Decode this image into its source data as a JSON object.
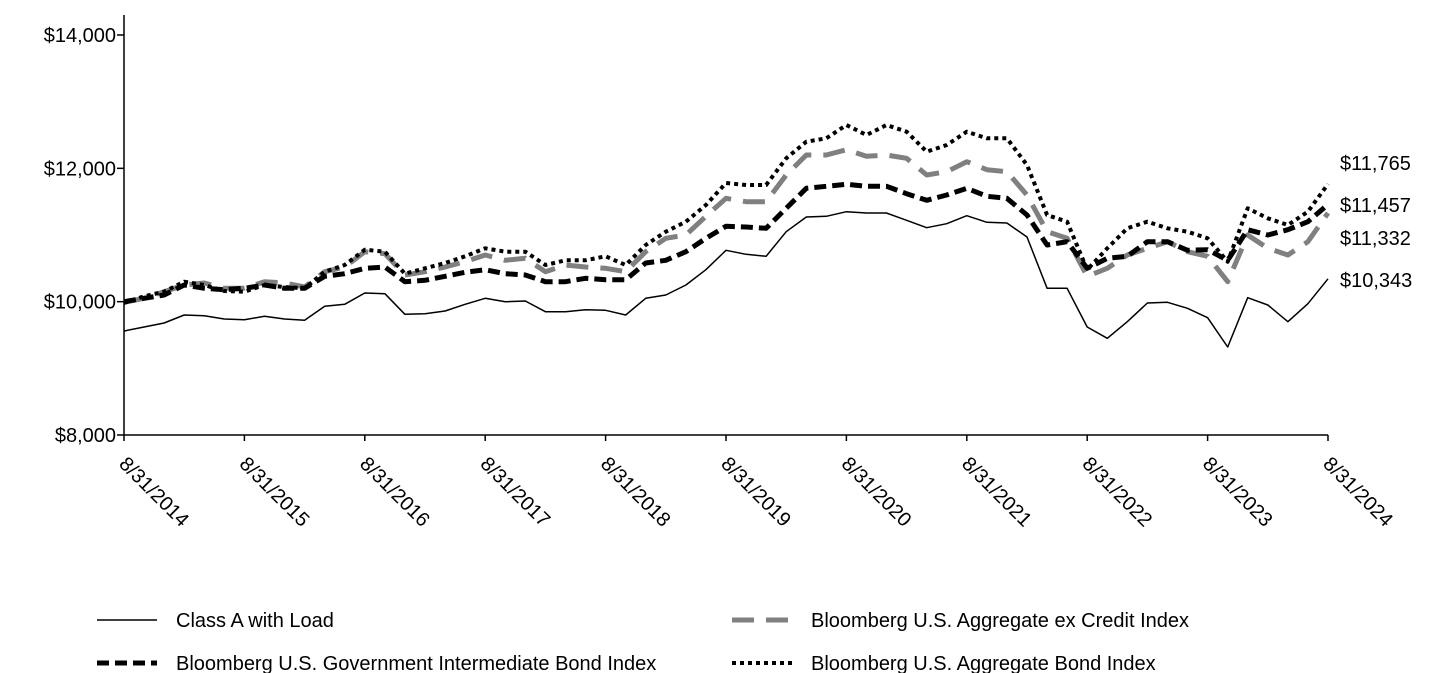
{
  "chart_data": {
    "type": "line",
    "categories": [
      "8/31/2014",
      null,
      null,
      null,
      null,
      null,
      "8/31/2015",
      null,
      null,
      null,
      null,
      null,
      "8/31/2016",
      null,
      null,
      null,
      null,
      null,
      "8/31/2017",
      null,
      null,
      null,
      null,
      null,
      "8/31/2018",
      null,
      null,
      null,
      null,
      null,
      "8/31/2019",
      null,
      null,
      null,
      null,
      null,
      "8/31/2020",
      null,
      null,
      null,
      null,
      null,
      "8/31/2021",
      null,
      null,
      null,
      null,
      null,
      "8/31/2022",
      null,
      null,
      null,
      null,
      null,
      "8/31/2023",
      null,
      null,
      null,
      null,
      null,
      "8/31/2024"
    ],
    "ylim": [
      8000,
      14000
    ],
    "yticks": [
      {
        "value": 8000,
        "label": "$8,000"
      },
      {
        "value": 10000,
        "label": "$10,000"
      },
      {
        "value": 12000,
        "label": "$12,000"
      },
      {
        "value": 14000,
        "label": "$14,000"
      }
    ],
    "grid": false,
    "legend": "bottom",
    "series": [
      {
        "name": "Class A with Load",
        "color": "#000000",
        "dash": "none",
        "width": 1.5,
        "values": [
          9560,
          9620,
          9680,
          9800,
          9790,
          9740,
          9730,
          9780,
          9740,
          9720,
          9930,
          9960,
          10130,
          10120,
          9810,
          9820,
          9860,
          9960,
          10050,
          10000,
          10010,
          9850,
          9850,
          9880,
          9870,
          9800,
          10050,
          10100,
          10250,
          10480,
          10770,
          10710,
          10680,
          11050,
          11270,
          11280,
          11350,
          11330,
          11330,
          11220,
          11110,
          11170,
          11290,
          11190,
          11180,
          10970,
          10200,
          10200,
          9620,
          9450,
          9700,
          9980,
          9990,
          9900,
          9760,
          9320,
          10060,
          9950,
          9700,
          9970,
          10343
        ],
        "value_labels": [
          null,
          null,
          null,
          null,
          null,
          null,
          null,
          null,
          null,
          null,
          null,
          null,
          null,
          null,
          null,
          null,
          null,
          null,
          null,
          null,
          null,
          null,
          null,
          null,
          null,
          null,
          null,
          null,
          null,
          null,
          null,
          null,
          null,
          null,
          null,
          null,
          null,
          null,
          null,
          null,
          null,
          null,
          null,
          null,
          null,
          null,
          null,
          null,
          null,
          null,
          null,
          null,
          null,
          null,
          null,
          null,
          null,
          null,
          null,
          null,
          "$10,343"
        ]
      },
      {
        "name": "Bloomberg U.S. Government Intermediate Bond Index",
        "color": "#000000",
        "dash": "12,6",
        "width": 5,
        "values": [
          10000,
          10050,
          10100,
          10250,
          10200,
          10180,
          10200,
          10250,
          10200,
          10200,
          10380,
          10420,
          10500,
          10520,
          10300,
          10320,
          10380,
          10440,
          10480,
          10420,
          10400,
          10300,
          10300,
          10350,
          10330,
          10330,
          10580,
          10620,
          10750,
          10950,
          11130,
          11120,
          11100,
          11400,
          11700,
          11730,
          11760,
          11730,
          11730,
          11620,
          11520,
          11600,
          11700,
          11580,
          11550,
          11300,
          10850,
          10900,
          10500,
          10650,
          10680,
          10900,
          10900,
          10770,
          10780,
          10620,
          11080,
          11000,
          11080,
          11200,
          11457
        ],
        "value_labels": [
          null,
          null,
          null,
          null,
          null,
          null,
          null,
          null,
          null,
          null,
          null,
          null,
          null,
          null,
          null,
          null,
          null,
          null,
          null,
          null,
          null,
          null,
          null,
          null,
          null,
          null,
          null,
          null,
          null,
          null,
          null,
          null,
          null,
          null,
          null,
          null,
          null,
          null,
          null,
          null,
          null,
          null,
          null,
          null,
          null,
          null,
          null,
          null,
          null,
          null,
          null,
          null,
          null,
          null,
          null,
          null,
          null,
          null,
          null,
          null,
          "$11,457"
        ]
      },
      {
        "name": "Bloomberg U.S. Aggregate ex Credit Index",
        "color": "#808080",
        "dash": "22,12",
        "width": 5,
        "values": [
          9990,
          10050,
          10150,
          10250,
          10280,
          10200,
          10200,
          10300,
          10280,
          10220,
          10450,
          10520,
          10750,
          10720,
          10400,
          10450,
          10520,
          10600,
          10700,
          10620,
          10650,
          10450,
          10550,
          10520,
          10500,
          10450,
          10750,
          10950,
          11000,
          11280,
          11550,
          11500,
          11500,
          11900,
          12200,
          12200,
          12280,
          12180,
          12200,
          12150,
          11900,
          11950,
          12100,
          11980,
          11950,
          11600,
          11050,
          10950,
          10380,
          10500,
          10700,
          10800,
          10900,
          10750,
          10680,
          10300,
          11000,
          10800,
          10700,
          10900,
          11332
        ],
        "value_labels": [
          null,
          null,
          null,
          null,
          null,
          null,
          null,
          null,
          null,
          null,
          null,
          null,
          null,
          null,
          null,
          null,
          null,
          null,
          null,
          null,
          null,
          null,
          null,
          null,
          null,
          null,
          null,
          null,
          null,
          null,
          null,
          null,
          null,
          null,
          null,
          null,
          null,
          null,
          null,
          null,
          null,
          null,
          null,
          null,
          null,
          null,
          null,
          null,
          null,
          null,
          null,
          null,
          null,
          null,
          null,
          null,
          null,
          null,
          null,
          null,
          "$11,332"
        ]
      },
      {
        "name": "Bloomberg U.S. Aggregate Bond Index",
        "color": "#000000",
        "dash": "4,4",
        "width": 4,
        "values": [
          9980,
          10080,
          10150,
          10300,
          10250,
          10160,
          10150,
          10250,
          10220,
          10200,
          10450,
          10550,
          10780,
          10750,
          10420,
          10500,
          10580,
          10680,
          10800,
          10750,
          10750,
          10550,
          10620,
          10620,
          10680,
          10550,
          10850,
          11050,
          11200,
          11450,
          11780,
          11750,
          11750,
          12150,
          12400,
          12450,
          12650,
          12500,
          12650,
          12550,
          12250,
          12350,
          12550,
          12450,
          12450,
          12050,
          11300,
          11200,
          10480,
          10800,
          11100,
          11200,
          11100,
          11050,
          10950,
          10600,
          11400,
          11250,
          11150,
          11350,
          11765
        ],
        "value_labels": [
          null,
          null,
          null,
          null,
          null,
          null,
          null,
          null,
          null,
          null,
          null,
          null,
          null,
          null,
          null,
          null,
          null,
          null,
          null,
          null,
          null,
          null,
          null,
          null,
          null,
          null,
          null,
          null,
          null,
          null,
          null,
          null,
          null,
          null,
          null,
          null,
          null,
          null,
          null,
          null,
          null,
          null,
          null,
          null,
          null,
          null,
          null,
          null,
          null,
          null,
          null,
          null,
          null,
          null,
          null,
          null,
          null,
          null,
          null,
          null,
          "$11,765"
        ]
      }
    ]
  }
}
